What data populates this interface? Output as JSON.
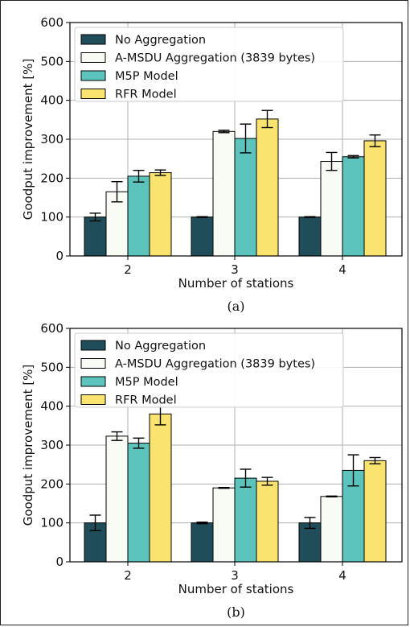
{
  "chart_data": [
    {
      "type": "bar",
      "panel": "(a)",
      "xlabel": "Number of stations",
      "ylabel": "Goodput improvement [%]",
      "categories": [
        "2",
        "3",
        "4"
      ],
      "ylim": [
        0,
        600
      ],
      "yticks": [
        0,
        100,
        200,
        300,
        400,
        500,
        600
      ],
      "grid": true,
      "legend": "top-left",
      "series": [
        {
          "name": "No Aggregation",
          "color": "#1f4e5a",
          "values": [
            100,
            100,
            100
          ],
          "errors": [
            10,
            1,
            1
          ]
        },
        {
          "name": "A-MSDU Aggregation (3839 bytes)",
          "color": "#f7fbf4",
          "values": [
            165,
            320,
            243
          ],
          "errors": [
            26,
            3,
            23
          ]
        },
        {
          "name": "M5P Model",
          "color": "#5cc4bd",
          "values": [
            205,
            302,
            255
          ],
          "errors": [
            15,
            37,
            3
          ]
        },
        {
          "name": "RFR Model",
          "color": "#fae36e",
          "values": [
            214,
            352,
            296
          ],
          "errors": [
            7,
            22,
            15
          ]
        }
      ]
    },
    {
      "type": "bar",
      "panel": "(b)",
      "xlabel": "Number of stations",
      "ylabel": "Goodput improvement [%]",
      "categories": [
        "2",
        "3",
        "4"
      ],
      "ylim": [
        0,
        600
      ],
      "yticks": [
        0,
        100,
        200,
        300,
        400,
        500,
        600
      ],
      "grid": true,
      "legend": "top-left",
      "series": [
        {
          "name": "No Aggregation",
          "color": "#1f4e5a",
          "values": [
            100,
            100,
            100
          ],
          "errors": [
            20,
            2,
            14
          ]
        },
        {
          "name": "A-MSDU Aggregation (3839 bytes)",
          "color": "#f7fbf4",
          "values": [
            323,
            190,
            168
          ],
          "errors": [
            11,
            1,
            1
          ]
        },
        {
          "name": "M5P Model",
          "color": "#5cc4bd",
          "values": [
            305,
            215,
            235
          ],
          "errors": [
            13,
            23,
            40
          ]
        },
        {
          "name": "RFR Model",
          "color": "#fae36e",
          "values": [
            380,
            207,
            260
          ],
          "errors": [
            28,
            10,
            8
          ]
        }
      ]
    }
  ]
}
